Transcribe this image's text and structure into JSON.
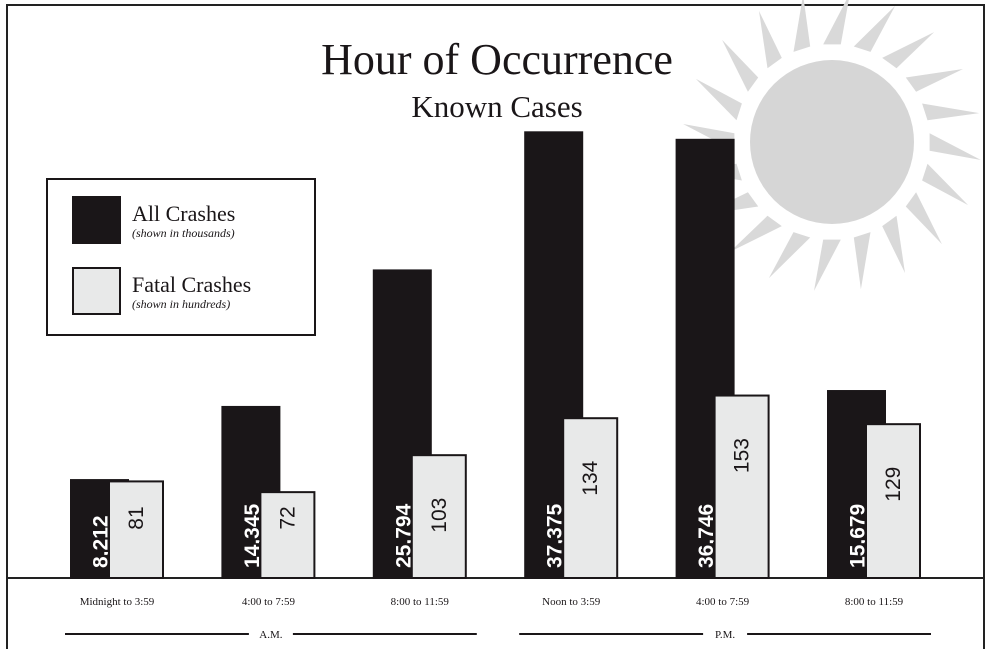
{
  "chart_data": {
    "type": "bar",
    "title": "Hour of Occurrence",
    "subtitle": "Known Cases",
    "categories": [
      "Midnight to 3:59",
      "4:00 to 7:59",
      "8:00 to 11:59",
      "Noon to 3:59",
      "4:00 to 7:59",
      "8:00 to 11:59"
    ],
    "group_labels": [
      "A.M.",
      "P.M."
    ],
    "series": [
      {
        "name": "All Crashes",
        "note": "(shown in thousands)",
        "color": "#1a1618",
        "values": [
          8212,
          14345,
          25794,
          37375,
          36746,
          15679
        ],
        "value_labels": [
          "8,212",
          "14,345",
          "25,794",
          "37,375",
          "36,746",
          "15,679"
        ]
      },
      {
        "name": "Fatal Crashes",
        "note": "(shown in hundreds)",
        "color": "#e8e9e9",
        "axis": "y2",
        "values": [
          81,
          72,
          103,
          134,
          153,
          129
        ]
      }
    ],
    "ylim": [
      0,
      40000
    ],
    "y2lim": [
      0,
      400
    ]
  }
}
